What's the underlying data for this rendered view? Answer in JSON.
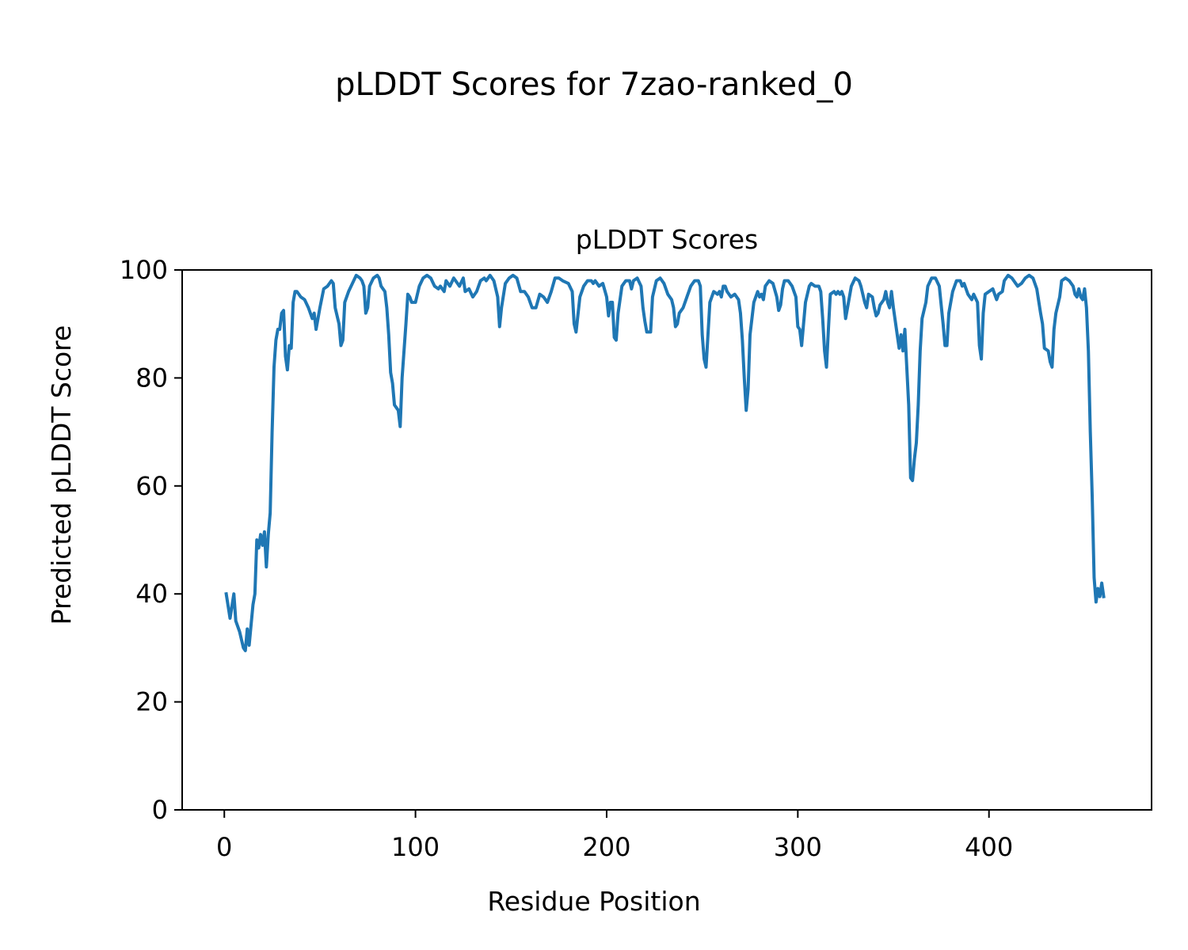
{
  "chart_data": {
    "type": "line",
    "suptitle": "pLDDT Scores for 7zao-ranked_0",
    "title": "pLDDT Scores",
    "x_label": "Residue Position",
    "y_label": "Predicted pLDDT Score",
    "xlim": [
      -22.05,
      485.05
    ],
    "ylim": [
      0,
      100
    ],
    "xticks": [
      0,
      100,
      200,
      300,
      400
    ],
    "yticks": [
      0,
      20,
      40,
      60,
      80,
      100
    ],
    "grid": false,
    "x": [
      1,
      3,
      5,
      6,
      8,
      10,
      11,
      12,
      13,
      15,
      16,
      17,
      18,
      19,
      20,
      21,
      22,
      23,
      24,
      25,
      26,
      27,
      28,
      29,
      30,
      31,
      32,
      33,
      34,
      35,
      36,
      37,
      38,
      40,
      42,
      44,
      46,
      47,
      48,
      50,
      52,
      54,
      56,
      57,
      58,
      60,
      61,
      62,
      63,
      65,
      67,
      69,
      71,
      72,
      73,
      74,
      75,
      76,
      78,
      80,
      81,
      82,
      84,
      85,
      86,
      87,
      88,
      89,
      90,
      91,
      92,
      93,
      95,
      96,
      97,
      98,
      100,
      102,
      104,
      106,
      108,
      110,
      112,
      113,
      115,
      116,
      118,
      120,
      121,
      123,
      125,
      126,
      128,
      130,
      132,
      134,
      136,
      137,
      139,
      141,
      143,
      144,
      145,
      147,
      149,
      151,
      153,
      155,
      157,
      159,
      161,
      163,
      165,
      167,
      169,
      171,
      173,
      175,
      177,
      180,
      182,
      183,
      184,
      186,
      188,
      190,
      192,
      193,
      194,
      196,
      198,
      200,
      201,
      202,
      203,
      204,
      205,
      206,
      208,
      210,
      212,
      213,
      214,
      216,
      218,
      219,
      220,
      221,
      223,
      224,
      226,
      228,
      230,
      232,
      234,
      235,
      236,
      237,
      238,
      240,
      242,
      244,
      246,
      248,
      249,
      250,
      251,
      252,
      253,
      254,
      256,
      258,
      259,
      260,
      261,
      262,
      263,
      265,
      267,
      269,
      270,
      271,
      272,
      273,
      274,
      275,
      277,
      279,
      280,
      281,
      282,
      283,
      285,
      287,
      289,
      290,
      291,
      292,
      293,
      295,
      297,
      299,
      300,
      301,
      302,
      304,
      306,
      307,
      309,
      311,
      312,
      313,
      314,
      315,
      316,
      317,
      319,
      320,
      321,
      322,
      323,
      324,
      325,
      326,
      328,
      330,
      332,
      333,
      335,
      336,
      337,
      339,
      340,
      341,
      342,
      343,
      345,
      346,
      347,
      348,
      349,
      350,
      352,
      353,
      354,
      355,
      356,
      357,
      358,
      359,
      360,
      361,
      362,
      363,
      364,
      365,
      367,
      368,
      370,
      372,
      374,
      376,
      377,
      378,
      379,
      381,
      383,
      385,
      386,
      387,
      389,
      391,
      392,
      394,
      395,
      396,
      397,
      398,
      400,
      402,
      403,
      404,
      405,
      407,
      408,
      410,
      412,
      414,
      415,
      417,
      419,
      421,
      423,
      425,
      427,
      428,
      429,
      431,
      432,
      433,
      434,
      435,
      437,
      438,
      440,
      442,
      444,
      445,
      446,
      447,
      448,
      449,
      450,
      451,
      452,
      453,
      454,
      455,
      456,
      457,
      458,
      459,
      460
    ],
    "series": [
      {
        "name": "pLDDT",
        "color": "#1f77b4",
        "values": [
          40,
          35.5,
          40,
          35,
          33,
          30,
          29.5,
          33.5,
          30.5,
          38,
          40,
          50,
          48.5,
          51,
          49,
          51.5,
          45,
          51,
          55,
          70,
          82,
          87,
          89,
          89,
          92,
          92.5,
          84,
          81.5,
          86,
          85.5,
          94,
          96,
          96,
          95,
          94.5,
          93,
          91,
          92,
          89,
          93,
          96.5,
          97,
          98,
          97.5,
          93,
          90,
          86,
          87,
          94,
          96,
          97.5,
          99,
          98.5,
          98,
          97,
          92,
          93,
          97,
          98.5,
          99,
          98.5,
          97,
          96,
          93,
          88,
          81,
          79,
          75,
          74.5,
          74,
          71,
          80,
          90,
          95.5,
          95,
          94,
          94,
          97,
          98.5,
          99,
          98.5,
          97,
          96.5,
          97,
          96,
          98,
          97,
          98.5,
          98,
          97,
          98.5,
          96,
          96.5,
          95,
          96,
          98,
          98.5,
          98,
          99,
          98,
          95,
          89.5,
          93,
          97.5,
          98.5,
          99,
          98.5,
          96,
          96,
          95,
          93,
          93,
          95.5,
          95,
          94,
          96,
          98.5,
          98.5,
          98,
          97.5,
          96,
          90,
          88.5,
          95,
          97,
          98,
          98,
          97.5,
          98,
          97,
          97.5,
          95,
          91.5,
          94,
          94,
          87.5,
          87,
          92,
          97,
          98,
          98,
          96.5,
          98,
          98.5,
          97,
          93,
          90.5,
          88.5,
          88.5,
          95,
          98,
          98.5,
          97.5,
          95.5,
          94.5,
          93,
          89.5,
          90,
          92,
          93,
          95,
          97,
          98,
          98,
          97,
          88,
          83.5,
          82,
          88,
          94,
          96,
          95.5,
          96,
          95,
          97,
          97,
          96,
          95,
          95.5,
          94.5,
          92,
          87,
          80,
          74,
          78,
          88,
          94,
          96,
          95,
          95.5,
          94.5,
          97,
          98,
          97.5,
          95,
          92.5,
          93.5,
          96.5,
          98,
          98,
          97,
          95,
          89.5,
          89,
          86,
          94,
          97,
          97.5,
          97,
          97,
          96,
          91,
          85,
          82,
          89,
          95.5,
          96,
          95.5,
          96,
          95.5,
          96,
          95,
          91,
          93,
          97,
          98.5,
          98,
          97,
          94,
          93,
          95.5,
          95,
          93,
          91.5,
          92,
          93.5,
          94.5,
          96,
          94,
          93,
          96,
          93,
          88,
          85.5,
          88,
          85,
          89,
          82,
          75,
          61.5,
          61,
          65,
          68,
          75,
          85,
          91,
          94,
          97,
          98.5,
          98.5,
          97,
          90,
          86,
          86,
          92,
          96,
          98,
          98,
          97,
          97.5,
          95.5,
          94.5,
          95.5,
          94,
          86,
          83.5,
          92,
          95.5,
          96,
          96.5,
          95.5,
          94.5,
          95.5,
          96,
          98,
          99,
          98.5,
          97.5,
          97,
          97.5,
          98.5,
          99,
          98.5,
          96.5,
          92,
          90,
          85.5,
          85,
          83,
          82,
          89,
          92,
          95,
          98,
          98.5,
          98,
          97,
          95.5,
          95,
          96.5,
          95,
          94.5,
          96.5,
          93,
          85,
          70,
          58,
          43,
          38.5,
          41,
          39.5,
          42,
          39.5
        ]
      }
    ]
  }
}
